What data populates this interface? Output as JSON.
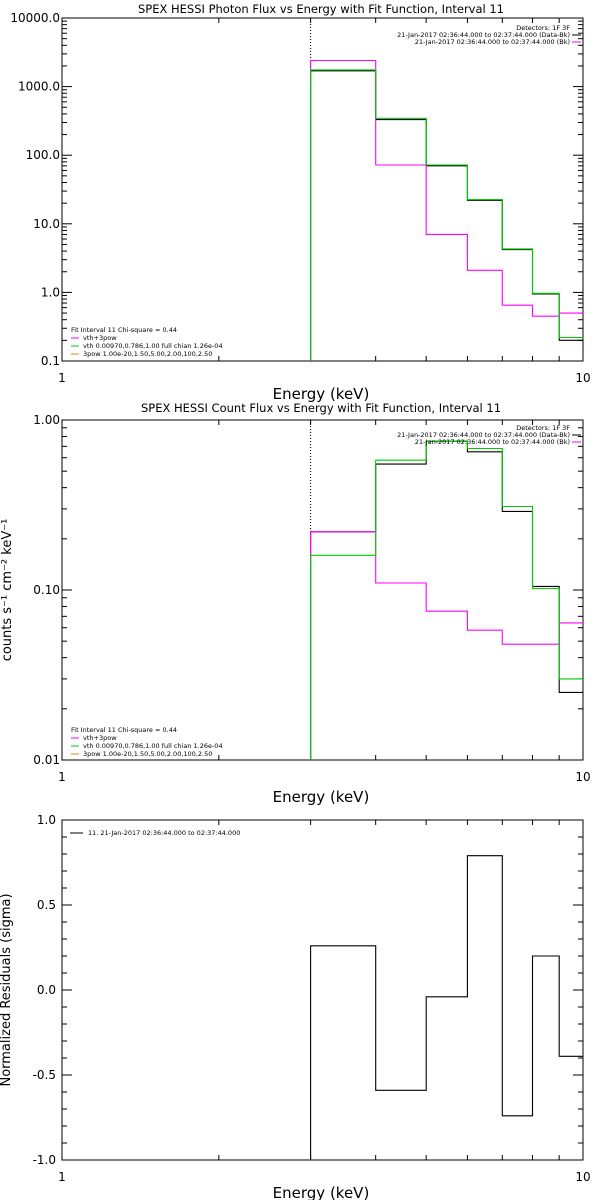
{
  "chart_data": [
    {
      "type": "step",
      "title": "SPEX HESSI Photon Flux vs Energy with Fit Function, Interval 11",
      "xlabel": "Energy (keV)",
      "ylabel": "",
      "xscale": "log",
      "yscale": "log",
      "xlim": [
        1,
        10
      ],
      "ylim": [
        0.1,
        10000
      ],
      "x_tick_labels": [
        "1",
        "10"
      ],
      "y_tick_labels": [
        "0.1",
        "1.0",
        "10.0",
        "100.0",
        "1000.0",
        "10000.0"
      ],
      "marker_x": 3,
      "bin_edges": [
        3,
        4,
        5,
        6,
        7,
        8,
        9,
        10
      ],
      "series": [
        {
          "name": "21-Jan-2017 02:36:44.000 to 02:37:44.000 (Data-Bk)",
          "color": "#000000",
          "values": [
            1700,
            330,
            70,
            22,
            4.2,
            0.95,
            0.2
          ]
        },
        {
          "name": "21-Jan-2017 02:36:44.000 to 02:37:44.000 (Bk)",
          "color": "#ff00ff",
          "values": [
            2400,
            72,
            7,
            2.1,
            0.65,
            0.45,
            0.5
          ]
        },
        {
          "name": "",
          "color": "#00cc00",
          "values": [
            1750,
            345,
            72,
            22.5,
            4.3,
            0.97,
            0.22
          ]
        }
      ],
      "legend_placement": "top-right",
      "legend_header": "Detectors: 1F 3F",
      "legend": [
        {
          "text": "21-Jan-2017 02:36:44.000 to 02:37:44.000 (Data-Bk)",
          "color": "#000000"
        },
        {
          "text": "21-Jan-2017 02:36:44.000 to 02:37:44.000 (Bk)",
          "color": "#ff00ff"
        }
      ],
      "fit_header": "Fit Interval 11   Chi-square = 0.44",
      "fit_lines": [
        {
          "text": "vth+3pow",
          "color": "#ff00ff"
        },
        {
          "text": "vth 0.00970,0.786,1.00  full chian 1.26e-04",
          "color": "#00cc00"
        },
        {
          "text": "3pow 1.00e-20,1.50,5.00,2.00,100,2.50",
          "color": "#cc9900"
        }
      ]
    },
    {
      "type": "step",
      "title": "SPEX HESSI Count Flux vs Energy with Fit Function, Interval 11",
      "xlabel": "Energy (keV)",
      "ylabel": "counts s⁻¹ cm⁻² keV⁻¹",
      "xscale": "log",
      "yscale": "log",
      "xlim": [
        1,
        10
      ],
      "ylim": [
        0.01,
        1
      ],
      "x_tick_labels": [
        "1",
        "10"
      ],
      "y_tick_labels": [
        "0.01",
        "0.10",
        "1.00"
      ],
      "marker_x": 3,
      "bin_edges": [
        3,
        4,
        5,
        6,
        7,
        8,
        9,
        10
      ],
      "series": [
        {
          "name": "21-Jan-2017 02:36:44.000 to 02:37:44.000 (Data-Bk)",
          "color": "#000000",
          "values": [
            0.22,
            0.55,
            0.75,
            0.65,
            0.29,
            0.105,
            0.025
          ]
        },
        {
          "name": "21-Jan-2017 02:36:44.000 to 02:37:44.000 (Bk)",
          "color": "#ff00ff",
          "values": [
            0.22,
            0.11,
            0.075,
            0.058,
            0.048,
            0.048,
            0.064
          ]
        },
        {
          "name": "",
          "color": "#00cc00",
          "values": [
            0.16,
            0.58,
            0.75,
            0.68,
            0.31,
            0.102,
            0.03
          ]
        }
      ],
      "legend_placement": "top-right",
      "legend_header": "Detectors: 1F 3F",
      "legend": [
        {
          "text": "21-Jan-2017 02:36:44.000 to 02:37:44.000 (Data-Bk)",
          "color": "#000000"
        },
        {
          "text": "21-Jan-2017 02:36:44.000 to 02:37:44.000 (Bk)",
          "color": "#ff00ff"
        }
      ],
      "fit_header": "Fit Interval 11   Chi-square = 0.44",
      "fit_lines": [
        {
          "text": "vth+3pow",
          "color": "#ff00ff"
        },
        {
          "text": "vth 0.00970,0.786,1.00  full chian 1.26e-04",
          "color": "#00cc00"
        },
        {
          "text": "3pow 1.00e-20,1.50,5.00,2.00,100,2.50",
          "color": "#cc9900"
        }
      ]
    },
    {
      "type": "step",
      "title": "",
      "xlabel": "Energy (keV)",
      "ylabel": "Normalized Residuals (sigma)",
      "xscale": "log",
      "yscale": "linear",
      "xlim": [
        1,
        10
      ],
      "ylim": [
        -1.0,
        1.0
      ],
      "x_tick_labels": [
        "1",
        "10"
      ],
      "y_tick_labels": [
        "-1.0",
        "-0.5",
        "0.0",
        "0.5",
        "1.0"
      ],
      "bin_edges": [
        3,
        4,
        5,
        6,
        7,
        8,
        9,
        10
      ],
      "series": [
        {
          "name": "11. 21-Jan-2017 02:36:44.000 to 02:37:44.000",
          "color": "#000000",
          "values": [
            0.26,
            -0.59,
            -0.04,
            0.79,
            -0.74,
            0.2,
            -0.39
          ]
        }
      ],
      "legend_placement": "top-left",
      "legend": [
        {
          "text": "11. 21-Jan-2017 02:36:44.000 to 02:37:44.000",
          "color": "#000000"
        }
      ]
    }
  ]
}
